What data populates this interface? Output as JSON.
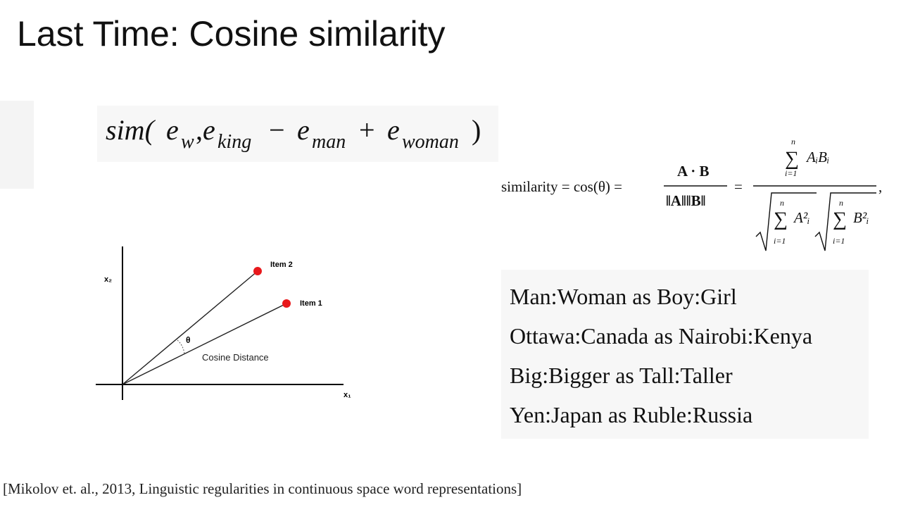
{
  "slide": {
    "title": "Last Time: Cosine similarity",
    "citation": "[Mikolov et. al., 2013, Linguistic regularities in continuous space word representations]"
  },
  "sim_equation": {
    "func": "sim(",
    "e": "e",
    "sub_w": "w",
    "comma": ",",
    "sub_king": "king",
    "minus": "−",
    "sub_man": "man",
    "plus": "+",
    "sub_woman": "woman",
    "close": ")"
  },
  "diagram": {
    "y_axis_label": "x₂",
    "x_axis_label": "x₁",
    "item2_label": "Item 2",
    "item1_label": "Item 1",
    "theta_label": "θ",
    "cosine_label": "Cosine Distance",
    "point_color": "#e8191c"
  },
  "cosine_formula": {
    "lhs": "similarity = cos(θ) =",
    "frac1_num": "A · B",
    "frac1_den": "‖A‖‖B‖",
    "equals": "=",
    "sum_symbol": "∑",
    "upper_n": "n",
    "lower_i": "i=1",
    "term_ab": "AᵢBᵢ",
    "term_a2": "A²ᵢ",
    "term_b2": "B²ᵢ",
    "trailing_comma": ","
  },
  "analogies": [
    "Man:Woman as Boy:Girl",
    "Ottawa:Canada as Nairobi:Kenya",
    "Big:Bigger as Tall:Taller",
    "Yen:Japan as Ruble:Russia"
  ]
}
